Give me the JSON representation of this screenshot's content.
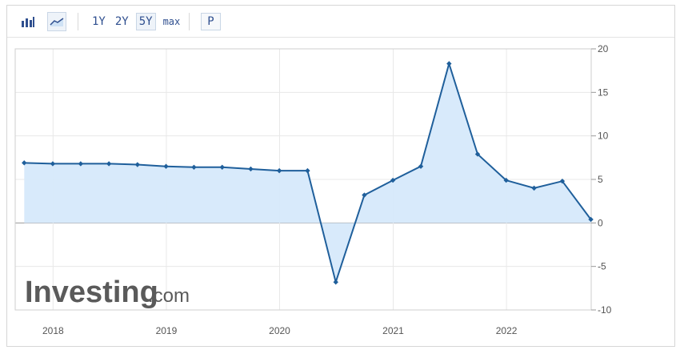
{
  "toolbar": {
    "icons": [
      "bar-chart-icon",
      "area-chart-icon"
    ],
    "ranges": [
      "1Y",
      "2Y",
      "5Y",
      "max"
    ],
    "active_range": "5Y",
    "p_label": "P"
  },
  "watermark": {
    "brand": "Investing",
    "suffix": ".com"
  },
  "colors": {
    "line": "#1f5f9b",
    "fill": "#d6e9fb",
    "grid": "#e8e8e8",
    "axis": "#9a9a9a",
    "watermark": "#5a5a5a"
  },
  "chart_data": {
    "type": "area",
    "title": "",
    "xlabel": "",
    "ylabel": "",
    "x": [
      "2017-09-30",
      "2017-12-31",
      "2018-03-31",
      "2018-06-30",
      "2018-09-30",
      "2018-12-31",
      "2019-03-31",
      "2019-06-30",
      "2019-09-30",
      "2019-12-31",
      "2020-03-31",
      "2020-06-30",
      "2020-09-30",
      "2020-12-31",
      "2021-03-31",
      "2021-06-30",
      "2021-09-30",
      "2021-12-31",
      "2022-03-31",
      "2022-06-30",
      "2022-09-30"
    ],
    "y": [
      6.9,
      6.8,
      6.8,
      6.8,
      6.7,
      6.5,
      6.4,
      6.4,
      6.2,
      6.0,
      6.0,
      -6.8,
      3.2,
      4.9,
      6.5,
      18.3,
      7.9,
      4.9,
      4.0,
      4.8,
      0.4
    ],
    "yticks": [
      20,
      15,
      10,
      5,
      0,
      -5,
      -10
    ],
    "ylim": [
      -10,
      20
    ],
    "xticks": [
      "2018",
      "2019",
      "2020",
      "2021",
      "2022"
    ],
    "grid": true
  }
}
